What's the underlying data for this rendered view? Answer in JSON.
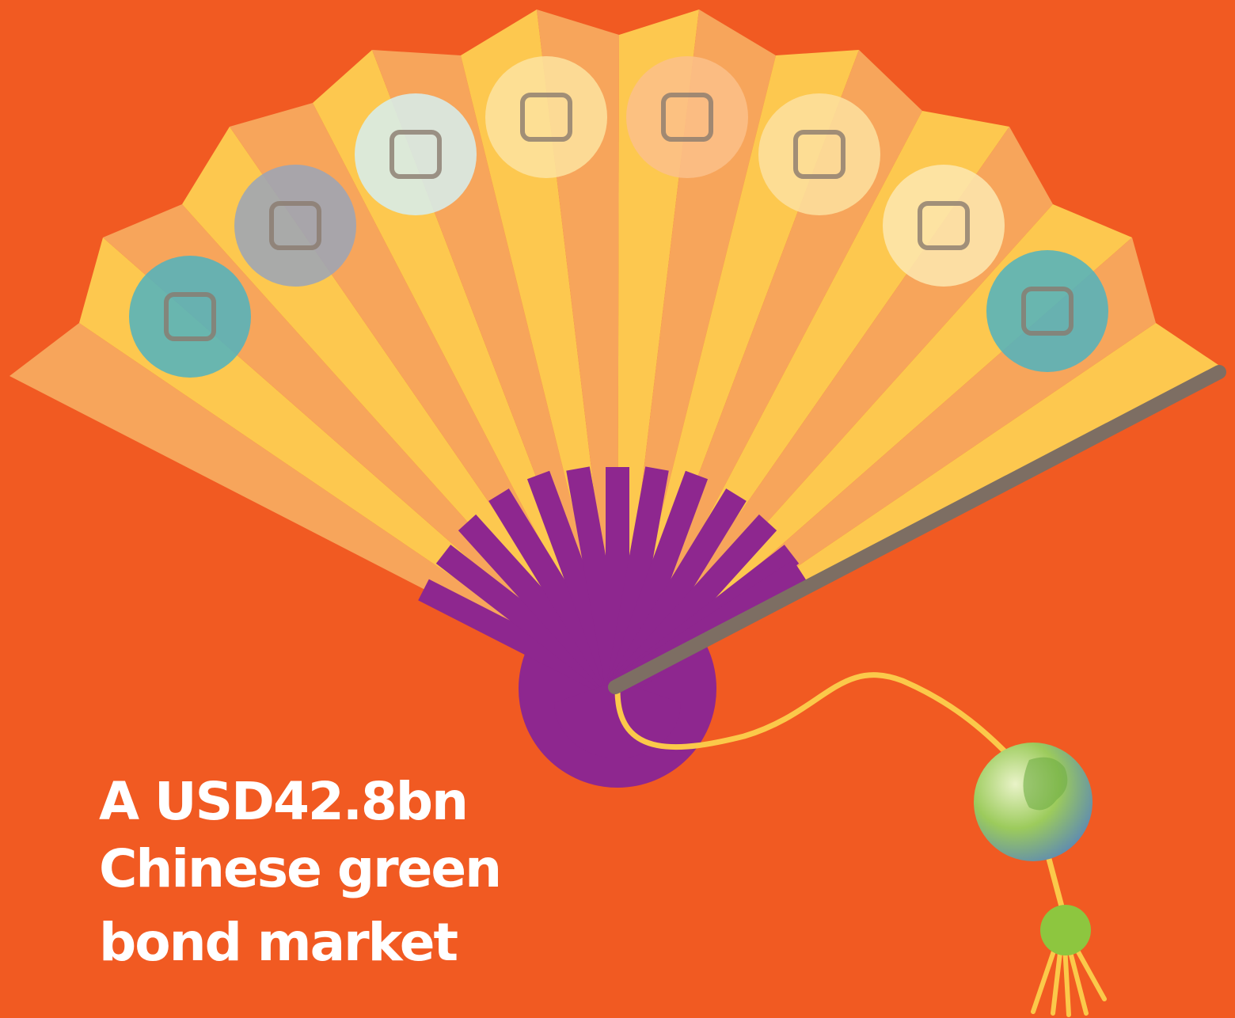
{
  "title": {
    "lines": [
      "A USD42.8bn",
      "Chinese green",
      "bond market"
    ]
  }
}
